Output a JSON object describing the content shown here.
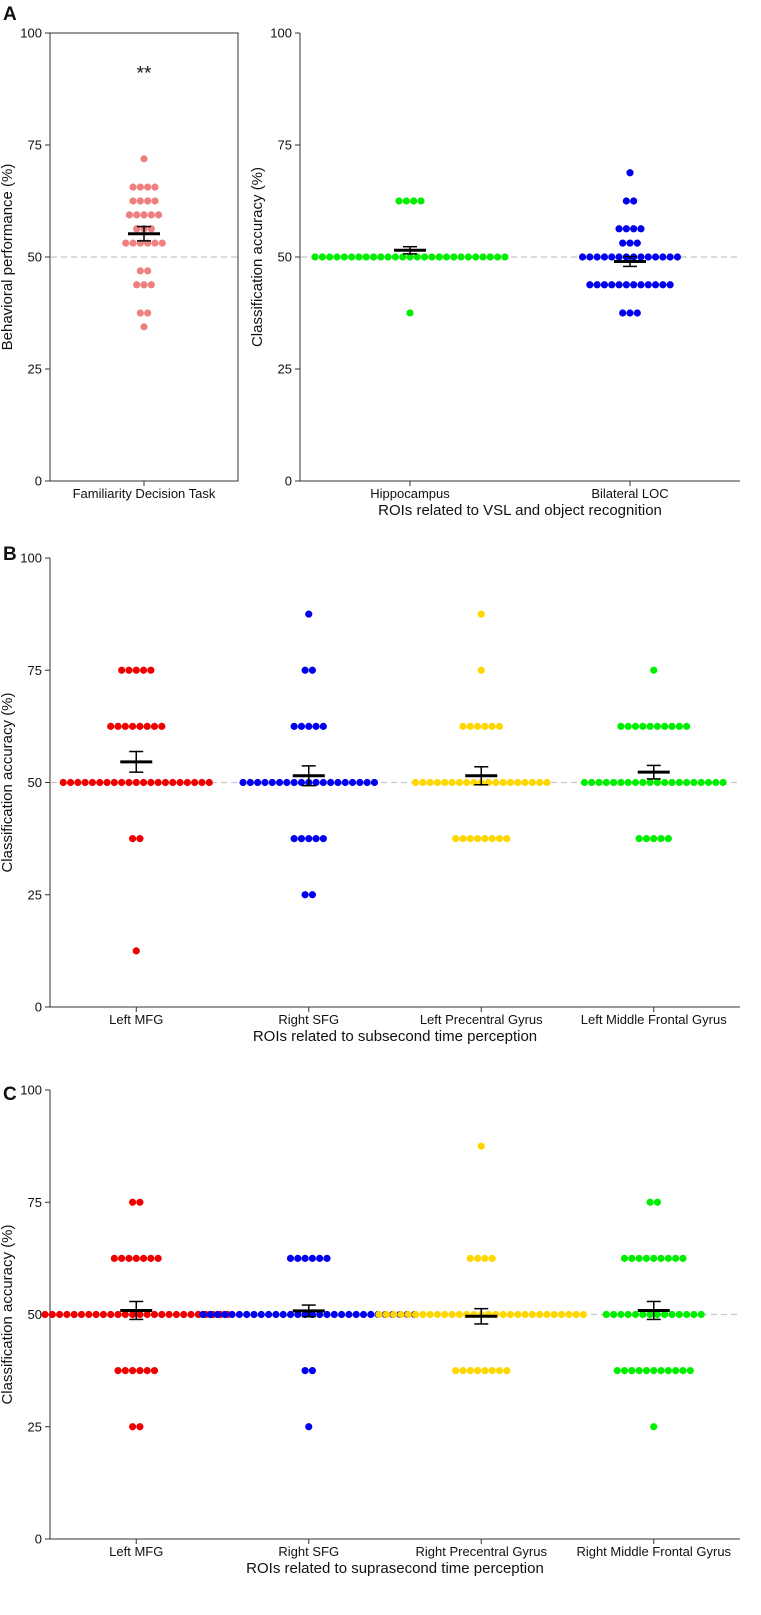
{
  "chart_data": [
    {
      "panel": "A",
      "type": "scatter",
      "subtype": "dot-strip",
      "title": "",
      "xlabel": "",
      "ylabel": "Behavioral performance (%)",
      "ylim": [
        0,
        100
      ],
      "yticks": [
        0,
        25,
        50,
        75,
        100
      ],
      "reference_line": 50,
      "categories": [
        "Familiarity Decision Task"
      ],
      "annotations": [
        {
          "category": "Familiarity Decision Task",
          "text": "**",
          "y": 91
        }
      ],
      "series": [
        {
          "name": "Familiarity Decision Task",
          "color": "#F08080",
          "values": [
            71.9,
            65.6,
            65.6,
            65.6,
            65.6,
            62.5,
            62.5,
            62.5,
            62.5,
            59.4,
            59.4,
            59.4,
            59.4,
            59.4,
            56.3,
            56.3,
            56.3,
            53.1,
            53.1,
            53.1,
            53.1,
            53.1,
            53.1,
            46.9,
            46.9,
            43.8,
            43.8,
            43.8,
            37.5,
            37.5,
            34.4
          ],
          "mean": 55.2,
          "sem": 1.6
        }
      ]
    },
    {
      "panel": "A",
      "type": "scatter",
      "subtype": "dot-strip",
      "title": "",
      "xlabel": "ROIs related to VSL and object recognition",
      "ylabel": "Classification accuracy (%)",
      "ylim": [
        0,
        100
      ],
      "yticks": [
        0,
        25,
        50,
        75,
        100
      ],
      "reference_line": 50,
      "categories": [
        "Hippocampus",
        "Bilateral LOC"
      ],
      "series": [
        {
          "name": "Hippocampus",
          "color": "#00EE00",
          "values": [
            62.5,
            62.5,
            62.5,
            62.5,
            50,
            50,
            50,
            50,
            50,
            50,
            50,
            50,
            50,
            50,
            50,
            50,
            50,
            50,
            50,
            50,
            50,
            50,
            50,
            50,
            50,
            50,
            50,
            50,
            50,
            50,
            50,
            37.5
          ],
          "mean": 51.5,
          "sem": 0.8
        },
        {
          "name": "Bilateral LOC",
          "color": "#0000EE",
          "values": [
            68.8,
            62.5,
            62.5,
            56.3,
            56.3,
            56.3,
            56.3,
            53.1,
            53.1,
            53.1,
            50,
            50,
            50,
            50,
            50,
            50,
            50,
            50,
            50,
            50,
            50,
            50,
            50,
            50,
            43.8,
            43.8,
            43.8,
            43.8,
            43.8,
            43.8,
            43.8,
            43.8,
            43.8,
            43.8,
            43.8,
            43.8,
            37.5,
            37.5,
            37.5
          ],
          "mean": 49,
          "sem": 1.1
        }
      ]
    },
    {
      "panel": "B",
      "type": "scatter",
      "subtype": "dot-strip",
      "title": "",
      "xlabel": "ROIs related to subsecond time perception",
      "ylabel": "Classification accuracy (%)",
      "ylim": [
        0,
        100
      ],
      "yticks": [
        0,
        25,
        50,
        75,
        100
      ],
      "reference_line": 50,
      "categories": [
        "Left MFG",
        "Right SFG",
        "Left Precentral Gyrus",
        "Left Middle Frontal Gyrus"
      ],
      "series": [
        {
          "name": "Left MFG",
          "color": "#EE0000",
          "values": [
            75,
            75,
            75,
            75,
            75,
            62.5,
            62.5,
            62.5,
            62.5,
            62.5,
            62.5,
            62.5,
            62.5,
            50,
            50,
            50,
            50,
            50,
            50,
            50,
            50,
            50,
            50,
            50,
            50,
            50,
            50,
            50,
            50,
            50,
            50,
            50,
            50,
            50,
            37.5,
            37.5,
            12.5
          ],
          "mean": 54.6,
          "sem": 2.3
        },
        {
          "name": "Right SFG",
          "color": "#0000EE",
          "values": [
            87.5,
            75,
            75,
            62.5,
            62.5,
            62.5,
            62.5,
            62.5,
            50,
            50,
            50,
            50,
            50,
            50,
            50,
            50,
            50,
            50,
            50,
            50,
            50,
            50,
            50,
            50,
            50,
            50,
            50,
            37.5,
            37.5,
            37.5,
            37.5,
            37.5,
            25,
            25
          ],
          "mean": 51.5,
          "sem": 2.2
        },
        {
          "name": "Left Precentral Gyrus",
          "color": "#FFD700",
          "values": [
            87.5,
            75,
            62.5,
            62.5,
            62.5,
            62.5,
            62.5,
            62.5,
            50,
            50,
            50,
            50,
            50,
            50,
            50,
            50,
            50,
            50,
            50,
            50,
            50,
            50,
            50,
            50,
            50,
            50,
            50,
            37.5,
            37.5,
            37.5,
            37.5,
            37.5,
            37.5,
            37.5,
            37.5
          ],
          "mean": 51.5,
          "sem": 2
        },
        {
          "name": "Left Middle Frontal Gyrus",
          "color": "#00EE00",
          "values": [
            75,
            62.5,
            62.5,
            62.5,
            62.5,
            62.5,
            62.5,
            62.5,
            62.5,
            62.5,
            62.5,
            50,
            50,
            50,
            50,
            50,
            50,
            50,
            50,
            50,
            50,
            50,
            50,
            50,
            50,
            50,
            50,
            50,
            50,
            50,
            50,
            37.5,
            37.5,
            37.5,
            37.5,
            37.5
          ],
          "mean": 52.3,
          "sem": 1.5
        }
      ]
    },
    {
      "panel": "C",
      "type": "scatter",
      "subtype": "dot-strip",
      "title": "",
      "xlabel": "ROIs related to suprasecond time perception",
      "ylabel": "Classification accuracy (%)",
      "ylim": [
        0,
        100
      ],
      "yticks": [
        0,
        25,
        50,
        75,
        100
      ],
      "reference_line": 50,
      "categories": [
        "Left MFG",
        "Right SFG",
        "Right Precentral Gyrus",
        "Right Middle Frontal Gyrus"
      ],
      "series": [
        {
          "name": "Left MFG",
          "color": "#EE0000",
          "values": [
            75,
            75,
            62.5,
            62.5,
            62.5,
            62.5,
            62.5,
            62.5,
            62.5,
            50,
            50,
            50,
            50,
            50,
            50,
            50,
            50,
            50,
            50,
            50,
            50,
            50,
            50,
            50,
            50,
            50,
            50,
            50,
            50,
            50,
            50,
            50,
            50,
            50,
            50,
            37.5,
            37.5,
            37.5,
            37.5,
            37.5,
            37.5,
            25,
            25
          ],
          "mean": 50.9,
          "sem": 2
        },
        {
          "name": "Right SFG",
          "color": "#0000EE",
          "values": [
            62.5,
            62.5,
            62.5,
            62.5,
            62.5,
            62.5,
            50,
            50,
            50,
            50,
            50,
            50,
            50,
            50,
            50,
            50,
            50,
            50,
            50,
            50,
            50,
            50,
            50,
            50,
            50,
            50,
            50,
            50,
            50,
            50,
            50,
            50,
            50,
            50,
            50,
            50,
            37.5,
            37.5,
            25
          ],
          "mean": 50.8,
          "sem": 1.3
        },
        {
          "name": "Right Precentral Gyrus",
          "color": "#FFD700",
          "values": [
            87.5,
            62.5,
            62.5,
            62.5,
            62.5,
            50,
            50,
            50,
            50,
            50,
            50,
            50,
            50,
            50,
            50,
            50,
            50,
            50,
            50,
            50,
            50,
            50,
            50,
            50,
            50,
            50,
            50,
            50,
            50,
            50,
            50,
            50,
            50,
            50,
            37.5,
            37.5,
            37.5,
            37.5,
            37.5,
            37.5,
            37.5,
            37.5
          ],
          "mean": 49.6,
          "sem": 1.7
        },
        {
          "name": "Right Middle Frontal Gyrus",
          "color": "#00EE00",
          "values": [
            75,
            75,
            62.5,
            62.5,
            62.5,
            62.5,
            62.5,
            62.5,
            62.5,
            62.5,
            62.5,
            50,
            50,
            50,
            50,
            50,
            50,
            50,
            50,
            50,
            50,
            50,
            50,
            50,
            50,
            37.5,
            37.5,
            37.5,
            37.5,
            37.5,
            37.5,
            37.5,
            37.5,
            37.5,
            37.5,
            37.5,
            25
          ],
          "mean": 50.9,
          "sem": 2
        }
      ]
    }
  ],
  "panel_letters": [
    "A",
    "B",
    "C"
  ]
}
